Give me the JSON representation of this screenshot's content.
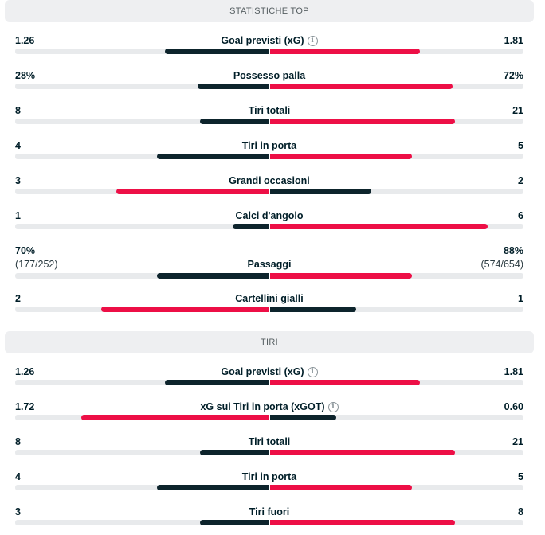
{
  "colors": {
    "lead": "#ed0f46",
    "trail": "#0d242c",
    "track": "#e8eaec"
  },
  "sections": [
    {
      "title": "STATISTICHE TOP",
      "rows": [
        {
          "label": "Goal previsti (xG)",
          "info": true,
          "home": "1.26",
          "away": "1.81",
          "home_frac": 0.41,
          "away_frac": 0.59
        },
        {
          "label": "Possesso palla",
          "home": "28%",
          "away": "72%",
          "home_frac": 0.28,
          "away_frac": 0.72
        },
        {
          "label": "Tiri totali",
          "home": "8",
          "away": "21",
          "home_frac": 0.27,
          "away_frac": 0.73
        },
        {
          "label": "Tiri in porta",
          "home": "4",
          "away": "5",
          "home_frac": 0.44,
          "away_frac": 0.56
        },
        {
          "label": "Grandi occasioni",
          "home": "3",
          "away": "2",
          "home_frac": 0.6,
          "away_frac": 0.4
        },
        {
          "label": "Calci d'angolo",
          "home": "1",
          "away": "6",
          "home_frac": 0.14,
          "away_frac": 0.86
        },
        {
          "label": "Passaggi",
          "home": "70%",
          "away": "88%",
          "home_sub": "(177/252)",
          "away_sub": "(574/654)",
          "home_frac": 0.44,
          "away_frac": 0.56
        },
        {
          "label": "Cartellini gialli",
          "home": "2",
          "away": "1",
          "home_frac": 0.66,
          "away_frac": 0.34
        }
      ]
    },
    {
      "title": "TIRI",
      "rows": [
        {
          "label": "Goal previsti (xG)",
          "info": true,
          "home": "1.26",
          "away": "1.81",
          "home_frac": 0.41,
          "away_frac": 0.59
        },
        {
          "label": "xG sui Tiri in porta (xGOT)",
          "info": true,
          "home": "1.72",
          "away": "0.60",
          "home_frac": 0.74,
          "away_frac": 0.26
        },
        {
          "label": "Tiri totali",
          "home": "8",
          "away": "21",
          "home_frac": 0.27,
          "away_frac": 0.73
        },
        {
          "label": "Tiri in porta",
          "home": "4",
          "away": "5",
          "home_frac": 0.44,
          "away_frac": 0.56
        },
        {
          "label": "Tiri fuori",
          "home": "3",
          "away": "8",
          "home_frac": 0.27,
          "away_frac": 0.73
        }
      ]
    }
  ]
}
